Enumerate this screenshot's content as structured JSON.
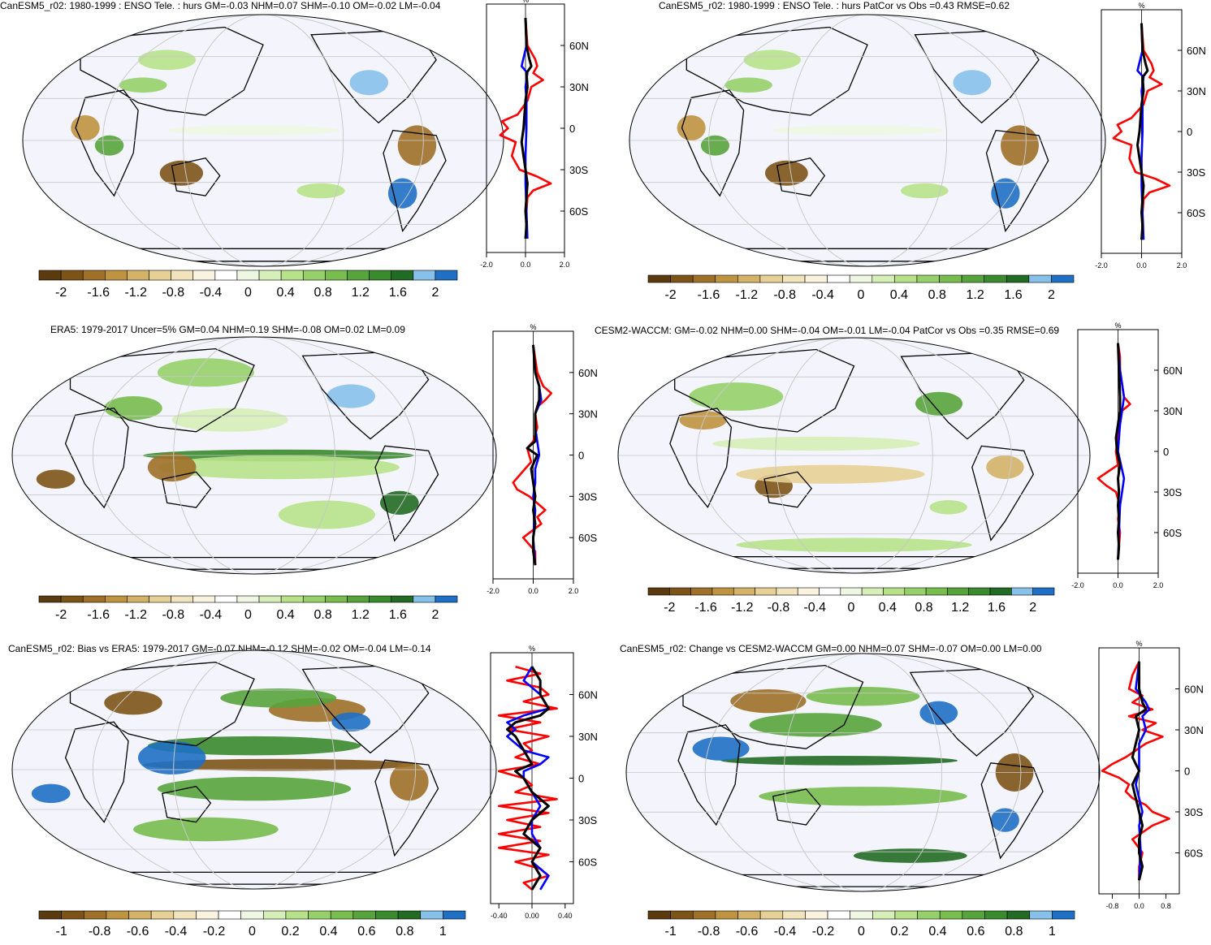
{
  "colors": {
    "palette": [
      "#5b3a10",
      "#7d5418",
      "#9e7028",
      "#bf9440",
      "#d4b268",
      "#e6d095",
      "#f1e4bc",
      "#f9f3df",
      "#ffffff",
      "#eef7e2",
      "#d6eeb7",
      "#b8e28a",
      "#96d06a",
      "#78bd4e",
      "#58a43c",
      "#3a8a2e",
      "#226b24",
      "#87c1ea",
      "#1f70c4"
    ],
    "ocean": "#f4f5fc",
    "coast": "#000000",
    "zonal_model": "#ff0000",
    "zonal_obs": "#0000ff",
    "zonal_mean": "#000000"
  },
  "chart_data": [
    {
      "type": "heatmap",
      "title": "CanESM5_r02: 1980-1999 : ENSO Tele. : hurs GM=-0.03 NHM=0.07 SHM=-0.10 OM=-0.02 LM=-0.04",
      "colorbar_ticks": [
        "-2",
        "-1.6",
        "-1.2",
        "-0.8",
        "-0.4",
        "0",
        "0.4",
        "0.8",
        "1.2",
        "1.6",
        "2"
      ],
      "zonal": {
        "unit": "%",
        "x_ticks": [
          "-2.0",
          "0.0",
          "2.0"
        ],
        "xlim": [
          -2,
          2
        ],
        "lat_ticks": [
          "60N",
          "30N",
          "0",
          "30S",
          "60S"
        ],
        "series": [
          {
            "color": "red",
            "lat": [
              80,
              70,
              60,
              50,
              45,
              40,
              35,
              30,
              20,
              10,
              5,
              0,
              -5,
              -10,
              -20,
              -30,
              -35,
              -40,
              -45,
              -50,
              -60,
              -70,
              -80
            ],
            "values": [
              0,
              0.05,
              0.1,
              0.5,
              0.6,
              0.4,
              0.9,
              0.3,
              0.1,
              -0.4,
              -1.2,
              -0.9,
              -1.3,
              -0.5,
              -0.7,
              -0.3,
              0.6,
              1.3,
              0.4,
              0.1,
              0.05,
              0.05,
              0.05
            ]
          },
          {
            "color": "blue",
            "lat": [
              80,
              60,
              45,
              40,
              30,
              20,
              0,
              -20,
              -40,
              -60,
              -80
            ],
            "values": [
              0,
              0.05,
              -0.2,
              0.1,
              0,
              0.05,
              0.05,
              0,
              0,
              0.05,
              0.1
            ]
          },
          {
            "color": "black",
            "lat": [
              80,
              60,
              50,
              45,
              40,
              30,
              20,
              0,
              -10,
              -20,
              -30,
              -40,
              -50,
              -60,
              -70,
              -80
            ],
            "values": [
              0,
              0.05,
              0.2,
              0.3,
              0.05,
              0.1,
              0,
              -0.1,
              -0.2,
              -0.1,
              0,
              0.1,
              0.05,
              0,
              0.05,
              0
            ]
          }
        ]
      }
    },
    {
      "type": "heatmap",
      "title": "CanESM5_r02: 1980-1999 : ENSO Tele. : hurs PatCor vs Obs =0.43 RMSE=0.62",
      "colorbar_ticks": [
        "-2",
        "-1.6",
        "-1.2",
        "-0.8",
        "-0.4",
        "0",
        "0.4",
        "0.8",
        "1.2",
        "1.6",
        "2"
      ],
      "zonal": {
        "unit": "%",
        "x_ticks": [
          "-2.0",
          "0.0",
          "2.0"
        ],
        "xlim": [
          -2,
          2
        ],
        "lat_ticks": [
          "60N",
          "30N",
          "0",
          "30S",
          "60S"
        ],
        "series": [
          {
            "color": "red",
            "lat": [
              80,
              70,
              60,
              50,
              45,
              40,
              35,
              30,
              20,
              10,
              5,
              0,
              -5,
              -10,
              -20,
              -30,
              -35,
              -40,
              -45,
              -50,
              -60,
              -70,
              -80
            ],
            "values": [
              0,
              0.05,
              0.1,
              0.5,
              0.6,
              0.4,
              1.0,
              0.3,
              0.1,
              -0.5,
              -1.2,
              -1.0,
              -1.4,
              -0.5,
              -0.6,
              -0.3,
              0.7,
              1.4,
              0.4,
              0.1,
              0.05,
              0.05,
              0.05
            ]
          },
          {
            "color": "blue",
            "lat": [
              80,
              60,
              45,
              40,
              30,
              20,
              0,
              -20,
              -40,
              -60,
              -80
            ],
            "values": [
              0,
              0.05,
              -0.2,
              0.1,
              0,
              0.05,
              0.05,
              0,
              0,
              0.05,
              0.1
            ]
          },
          {
            "color": "black",
            "lat": [
              80,
              60,
              50,
              45,
              40,
              30,
              20,
              0,
              -10,
              -20,
              -30,
              -40,
              -50,
              -60,
              -70,
              -80
            ],
            "values": [
              0,
              0.05,
              0.2,
              0.3,
              0.05,
              0.1,
              0,
              -0.1,
              -0.2,
              -0.1,
              0,
              0.1,
              0.05,
              0,
              0.05,
              0
            ]
          }
        ]
      }
    },
    {
      "type": "heatmap",
      "title": "ERA5: 1979-2017 Uncer=5% GM=0.04 NHM=0.19 SHM=-0.08 OM=0.02 LM=0.09",
      "colorbar_ticks": [
        "-2",
        "-1.6",
        "-1.2",
        "-0.8",
        "-0.4",
        "0",
        "0.4",
        "0.8",
        "1.2",
        "1.6",
        "2"
      ],
      "zonal": {
        "unit": "%",
        "x_ticks": [
          "-2.0",
          "0.0",
          "2.0"
        ],
        "xlim": [
          -2,
          2
        ],
        "lat_ticks": [
          "60N",
          "30N",
          "0",
          "30S",
          "60S"
        ],
        "series": [
          {
            "color": "red",
            "lat": [
              80,
              70,
              60,
              50,
              45,
              40,
              35,
              30,
              20,
              10,
              5,
              0,
              -5,
              -10,
              -20,
              -25,
              -30,
              -40,
              -45,
              -50,
              -60,
              -70,
              -80
            ],
            "values": [
              0,
              0.1,
              0.2,
              0.5,
              0.9,
              0.6,
              0.2,
              0.1,
              0.2,
              0,
              -0.3,
              -0.2,
              -0.1,
              -0.4,
              -1.0,
              -0.8,
              -0.2,
              0.6,
              0.2,
              0.4,
              -0.5,
              0.1,
              0.1
            ]
          },
          {
            "color": "blue",
            "lat": [
              80,
              60,
              50,
              40,
              30,
              20,
              10,
              0,
              -10,
              -20,
              -30,
              -40,
              -60,
              -80
            ],
            "values": [
              0,
              0.1,
              0.3,
              0.4,
              0.1,
              0.1,
              0.2,
              0.3,
              0.1,
              0.1,
              0,
              0.1,
              0,
              0.1
            ]
          },
          {
            "color": "black",
            "lat": [
              80,
              60,
              50,
              40,
              30,
              20,
              10,
              5,
              0,
              -10,
              -20,
              -30,
              -40,
              -50,
              -60,
              -70,
              -80
            ],
            "values": [
              0,
              0.1,
              0.3,
              0.3,
              0.1,
              0.1,
              0.1,
              -0.3,
              0.2,
              -0.1,
              0,
              0.1,
              0,
              0.1,
              0,
              0,
              0.1
            ]
          }
        ]
      }
    },
    {
      "type": "heatmap",
      "title": "CESM2-WACCM: GM=-0.02 NHM=0.00 SHM=-0.04 OM=-0.01 LM=-0.04 PatCor vs Obs =0.35 RMSE=0.69",
      "colorbar_ticks": [
        "-2",
        "-1.6",
        "-1.2",
        "-0.8",
        "-0.4",
        "0",
        "0.4",
        "0.8",
        "1.2",
        "1.6",
        "2"
      ],
      "zonal": {
        "unit": "%",
        "x_ticks": [
          "-2.0",
          "0.0",
          "2.0"
        ],
        "xlim": [
          -2,
          2
        ],
        "lat_ticks": [
          "60N",
          "30N",
          "0",
          "30S",
          "60S"
        ],
        "series": [
          {
            "color": "red",
            "lat": [
              80,
              70,
              60,
              50,
              40,
              35,
              30,
              20,
              10,
              0,
              -10,
              -15,
              -20,
              -25,
              -30,
              -40,
              -50,
              -60,
              -70,
              -80
            ],
            "values": [
              0,
              0.1,
              0.1,
              0.2,
              0.3,
              0.6,
              0.2,
              0.1,
              0,
              -0.1,
              0,
              -0.5,
              -1.0,
              -0.6,
              -0.1,
              0.1,
              0,
              0.1,
              0.05,
              0
            ]
          },
          {
            "color": "blue",
            "lat": [
              80,
              60,
              40,
              30,
              20,
              0,
              -20,
              -30,
              -40,
              -60,
              -80
            ],
            "values": [
              0,
              0.1,
              0.3,
              0.2,
              0.1,
              0,
              0.3,
              0.2,
              0.1,
              0.05,
              0
            ]
          },
          {
            "color": "black",
            "lat": [
              80,
              60,
              40,
              30,
              20,
              10,
              0,
              -10,
              -20,
              -30,
              -40,
              -50,
              -60,
              -70,
              -80
            ],
            "values": [
              0,
              0.05,
              0.1,
              0.1,
              0,
              -0.1,
              -0.05,
              0.1,
              0,
              0.05,
              0,
              0.05,
              0,
              0.05,
              0
            ]
          }
        ]
      }
    },
    {
      "type": "heatmap",
      "title": "CanESM5_r02: Bias vs ERA5: 1979-2017 GM=-0.07 NHM=-0.12 SHM=-0.02 OM=-0.04 LM=-0.14",
      "colorbar_ticks": [
        "-1",
        "-0.8",
        "-0.6",
        "-0.4",
        "-0.2",
        "0",
        "0.2",
        "0.4",
        "0.6",
        "0.8",
        "1"
      ],
      "zonal": {
        "unit": "%",
        "x_ticks": [
          "-0.40",
          "0.00",
          "0.40"
        ],
        "xlim": [
          -0.5,
          0.5
        ],
        "lat_ticks": [
          "60N",
          "30N",
          "0",
          "30S",
          "60S"
        ],
        "series": [
          {
            "color": "red",
            "lat": [
              80,
              75,
              70,
              65,
              60,
              55,
              50,
              45,
              40,
              35,
              30,
              25,
              20,
              15,
              10,
              5,
              0,
              -5,
              -10,
              -15,
              -20,
              -25,
              -30,
              -35,
              -40,
              -45,
              -50,
              -55,
              -60,
              -65,
              -70,
              -75,
              -80
            ],
            "values": [
              -0.2,
              0.1,
              -0.3,
              0.1,
              0.2,
              -0.1,
              0.3,
              -0.4,
              0.1,
              -0.3,
              0.2,
              -0.1,
              0,
              -0.2,
              0.1,
              -0.4,
              -0.1,
              0,
              -0.2,
              0.3,
              -0.4,
              0.2,
              -0.3,
              0.1,
              -0.4,
              0.1,
              -0.4,
              0.2,
              -0.2,
              0.1,
              0.2,
              -0.1,
              0
            ]
          },
          {
            "color": "blue",
            "lat": [
              80,
              70,
              60,
              50,
              45,
              40,
              35,
              30,
              20,
              15,
              10,
              5,
              0,
              -10,
              -20,
              -30,
              -40,
              -50,
              -60,
              -70,
              -80
            ],
            "values": [
              0,
              -0.1,
              0.1,
              0.2,
              -0.1,
              -0.3,
              -0.2,
              -0.3,
              -0.1,
              0.2,
              0.1,
              -0.1,
              -0.1,
              0,
              0.1,
              0,
              0,
              0.1,
              0,
              0.2,
              0.1
            ]
          },
          {
            "color": "black",
            "lat": [
              80,
              70,
              60,
              50,
              45,
              40,
              35,
              30,
              20,
              10,
              5,
              0,
              -10,
              -20,
              -30,
              -40,
              -50,
              -60,
              -70,
              -80
            ],
            "values": [
              0,
              0.1,
              0.1,
              0.2,
              0.1,
              -0.2,
              -0.3,
              -0.2,
              -0.1,
              0,
              -0.2,
              -0.1,
              0,
              0.2,
              0,
              -0.1,
              0.1,
              0,
              0.1,
              0
            ]
          }
        ]
      }
    },
    {
      "type": "heatmap",
      "title": "CanESM5_r02: Change vs CESM2-WACCM GM=0.00 NHM=0.07 SHM=-0.07 OM=0.00 LM=0.00",
      "colorbar_ticks": [
        "-1",
        "-0.8",
        "-0.6",
        "-0.4",
        "-0.2",
        "0",
        "0.2",
        "0.4",
        "0.6",
        "0.8",
        "1"
      ],
      "zonal": {
        "unit": "%",
        "x_ticks": [
          "-0.8",
          "0.0",
          "0.8"
        ],
        "xlim": [
          -1.2,
          1.2
        ],
        "lat_ticks": [
          "60N",
          "30N",
          "0",
          "30S",
          "60S"
        ],
        "series": [
          {
            "color": "red",
            "lat": [
              80,
              70,
              60,
              55,
              50,
              45,
              40,
              35,
              30,
              25,
              20,
              15,
              10,
              5,
              0,
              -5,
              -10,
              -15,
              -20,
              -25,
              -30,
              -35,
              -40,
              -45,
              -50,
              -60,
              -70,
              -80
            ],
            "values": [
              0,
              -0.2,
              -0.3,
              0.1,
              -0.2,
              0.4,
              -0.3,
              0.5,
              0.1,
              0.7,
              0.2,
              -0.1,
              -0.4,
              -0.8,
              -1.1,
              -0.6,
              -0.3,
              -0.4,
              -0.2,
              0.2,
              0.4,
              0.9,
              0.4,
              0.1,
              -0.2,
              0.1,
              0,
              0
            ]
          },
          {
            "color": "blue",
            "lat": [
              80,
              60,
              50,
              45,
              40,
              30,
              20,
              10,
              0,
              -10,
              -20,
              -30,
              -40,
              -60,
              -80
            ],
            "values": [
              0,
              -0.1,
              0.2,
              0.3,
              0.1,
              0.2,
              0,
              0,
              0,
              -0.1,
              0,
              0.1,
              0,
              0.05,
              0
            ]
          },
          {
            "color": "black",
            "lat": [
              80,
              60,
              50,
              45,
              40,
              30,
              20,
              10,
              0,
              -10,
              -20,
              -30,
              -40,
              -50,
              -60,
              -70,
              -80
            ],
            "values": [
              0,
              0,
              0.1,
              0.2,
              -0.1,
              0,
              -0.1,
              -0.2,
              0,
              -0.2,
              -0.1,
              0,
              0.1,
              0,
              0,
              0.1,
              0
            ]
          }
        ]
      }
    }
  ]
}
